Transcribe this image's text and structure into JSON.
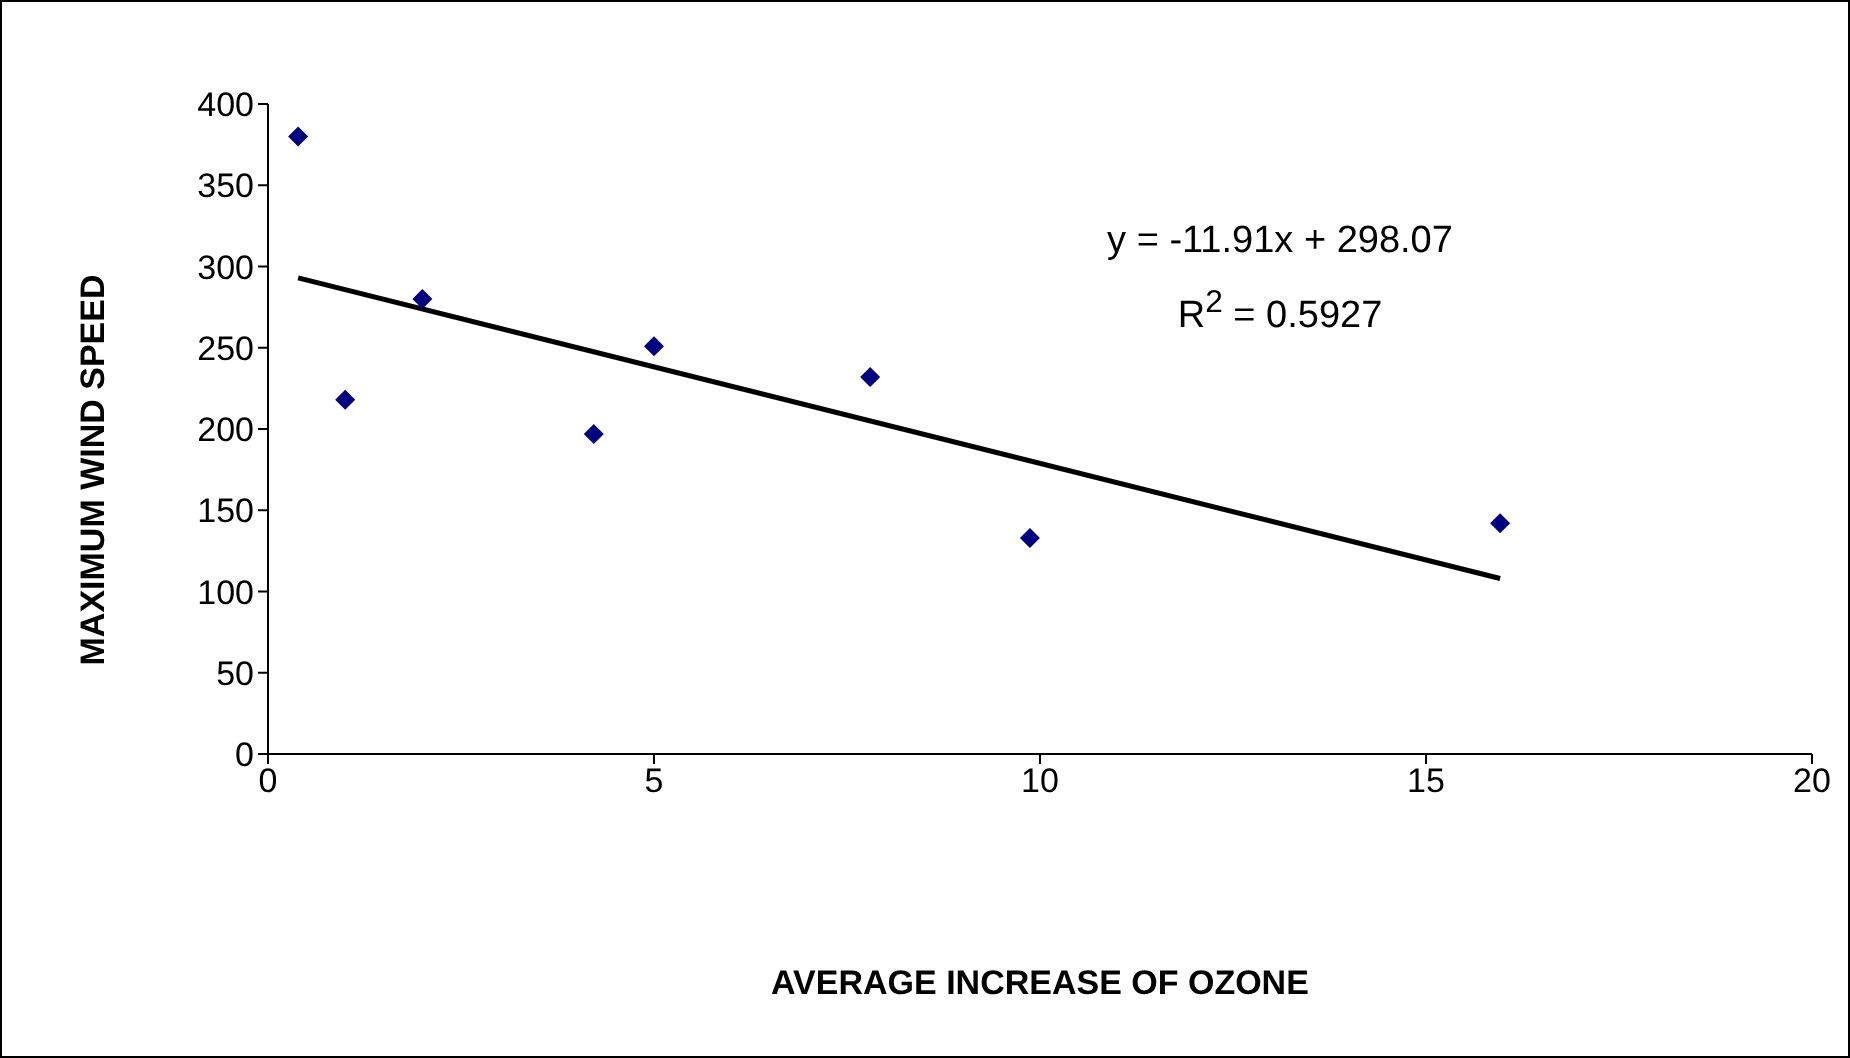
{
  "chart_data": {
    "type": "scatter",
    "xlabel": "AVERAGE INCREASE OF OZONE",
    "ylabel": "MAXIMUM WIND SPEED",
    "xlim": [
      0,
      20
    ],
    "xticks": [
      0,
      5,
      10,
      15,
      20
    ],
    "ylim": [
      0,
      400
    ],
    "yticks": [
      0,
      50,
      100,
      150,
      200,
      250,
      300,
      350,
      400
    ],
    "grid": false,
    "legend": false,
    "marker": "diamond",
    "annotations": [
      "y = -11.91x + 298.07",
      "R$^{2}$ = 0.5927"
    ],
    "series": [
      {
        "color": "#000080",
        "x": [
          0.39,
          1.0,
          2.0,
          4.22,
          5.0,
          7.8,
          9.87,
          15.96
        ],
        "values": [
          380,
          218,
          280,
          197,
          251,
          232,
          133,
          142
        ]
      },
      {
        "type": "line",
        "color": "#000000",
        "marker": "none",
        "line_style": "solid",
        "x": [
          0.39,
          15.96
        ],
        "values": [
          293,
          108
        ]
      }
    ]
  }
}
